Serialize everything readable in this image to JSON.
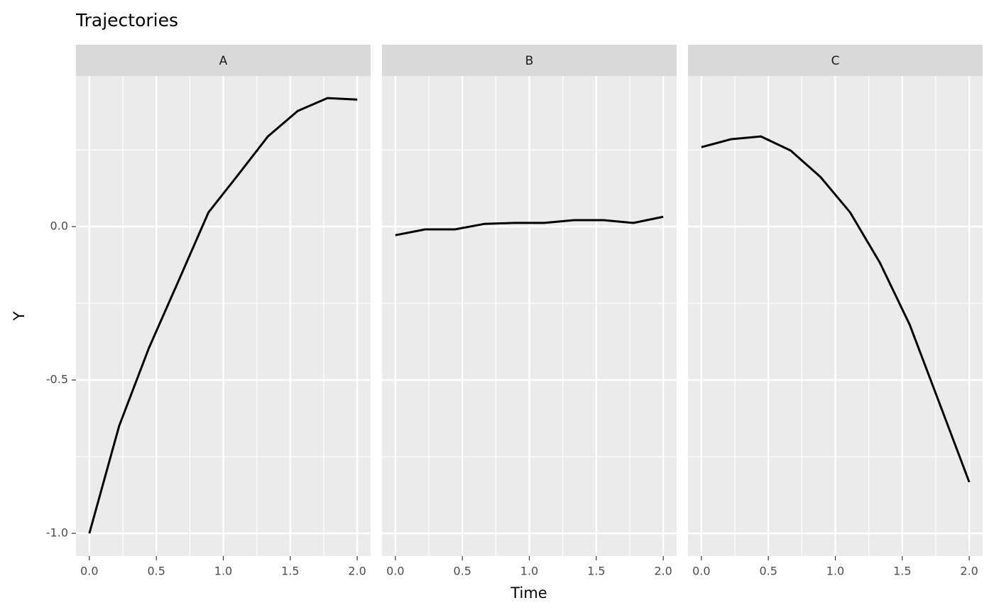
{
  "chart_data": {
    "type": "line",
    "title": "Trajectories",
    "xlabel": "Time",
    "ylabel": "Y",
    "x": [
      0,
      0.2222,
      0.4444,
      0.6667,
      0.8889,
      1.1111,
      1.3333,
      1.5556,
      1.7778,
      2.0
    ],
    "series": [
      {
        "name": "A",
        "color": "#000000",
        "values": [
          -1.0,
          -0.65,
          -0.396,
          -0.176,
          0.046,
          0.169,
          0.294,
          0.377,
          0.419,
          0.414
        ]
      },
      {
        "name": "B",
        "color": "#000000",
        "values": [
          -0.028,
          -0.009,
          -0.009,
          0.009,
          0.012,
          0.012,
          0.021,
          0.021,
          0.012,
          0.032
        ]
      },
      {
        "name": "C",
        "color": "#000000",
        "values": [
          0.259,
          0.285,
          0.294,
          0.248,
          0.162,
          0.046,
          -0.118,
          -0.32,
          -0.576,
          -0.833
        ]
      }
    ],
    "xlim": [
      -0.1,
      2.1
    ],
    "ylim": [
      -1.074,
      0.491
    ],
    "xticks": [
      {
        "value": 0,
        "label": "0.0"
      },
      {
        "value": 0.5,
        "label": "0.5"
      },
      {
        "value": 1,
        "label": "1.0"
      },
      {
        "value": 1.5,
        "label": "1.5"
      },
      {
        "value": 2,
        "label": "2.0"
      }
    ],
    "yticks": [
      {
        "value": -1,
        "label": "-1.0"
      },
      {
        "value": -0.5,
        "label": "-0.5"
      },
      {
        "value": 0,
        "label": "0.0"
      }
    ],
    "xminor": [
      0.25,
      0.75,
      1.25,
      1.75
    ],
    "yminor": [
      -0.75,
      -0.25,
      0.25
    ],
    "grid": true
  }
}
